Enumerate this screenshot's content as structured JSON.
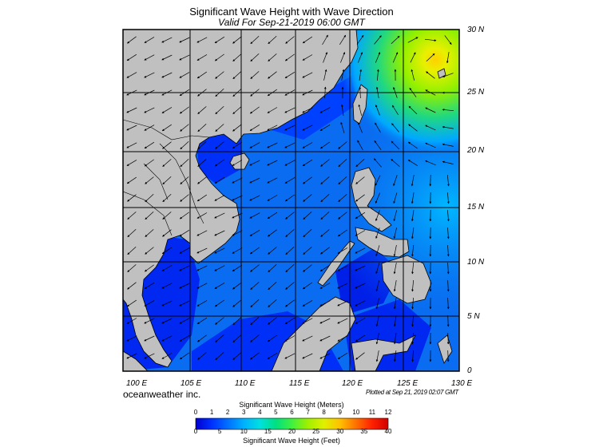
{
  "title": "Significant Wave Height with Wave Direction",
  "subtitle": "Valid For Sep-21-2019 06:00 GMT",
  "credit": "oceanweather inc.",
  "plotted": "Plotted at Sep 21, 2019 02:07 GMT",
  "lat_labels": [
    "30 N",
    "25 N",
    "20 N",
    "15 N",
    "10 N",
    "5 N",
    "0"
  ],
  "lon_labels": [
    "100 E",
    "105 E",
    "110 E",
    "115 E",
    "120 E",
    "125 E",
    "130 E"
  ],
  "colorbar": {
    "title_meters": "Significant Wave Height (Meters)",
    "title_feet": "Significant Wave Height (Feet)",
    "meter_ticks": [
      "0",
      "1",
      "2",
      "3",
      "4",
      "5",
      "6",
      "7",
      "8",
      "9",
      "10",
      "11",
      "12"
    ],
    "feet_ticks": [
      "0",
      "5",
      "10",
      "15",
      "20",
      "25",
      "30",
      "35",
      "40"
    ],
    "colors": [
      "#0000d0",
      "#0030ff",
      "#0070ff",
      "#00b0ff",
      "#00e0e0",
      "#00e080",
      "#40f040",
      "#a0f000",
      "#e0f000",
      "#ffc000",
      "#ff7000",
      "#ff2000",
      "#d00000"
    ]
  },
  "legend_colors": {
    "land": "#c0c0c0",
    "sea_low": "#0030ff",
    "sea_mid": "#0a6cf0",
    "swell_high": "#7cf000"
  }
}
